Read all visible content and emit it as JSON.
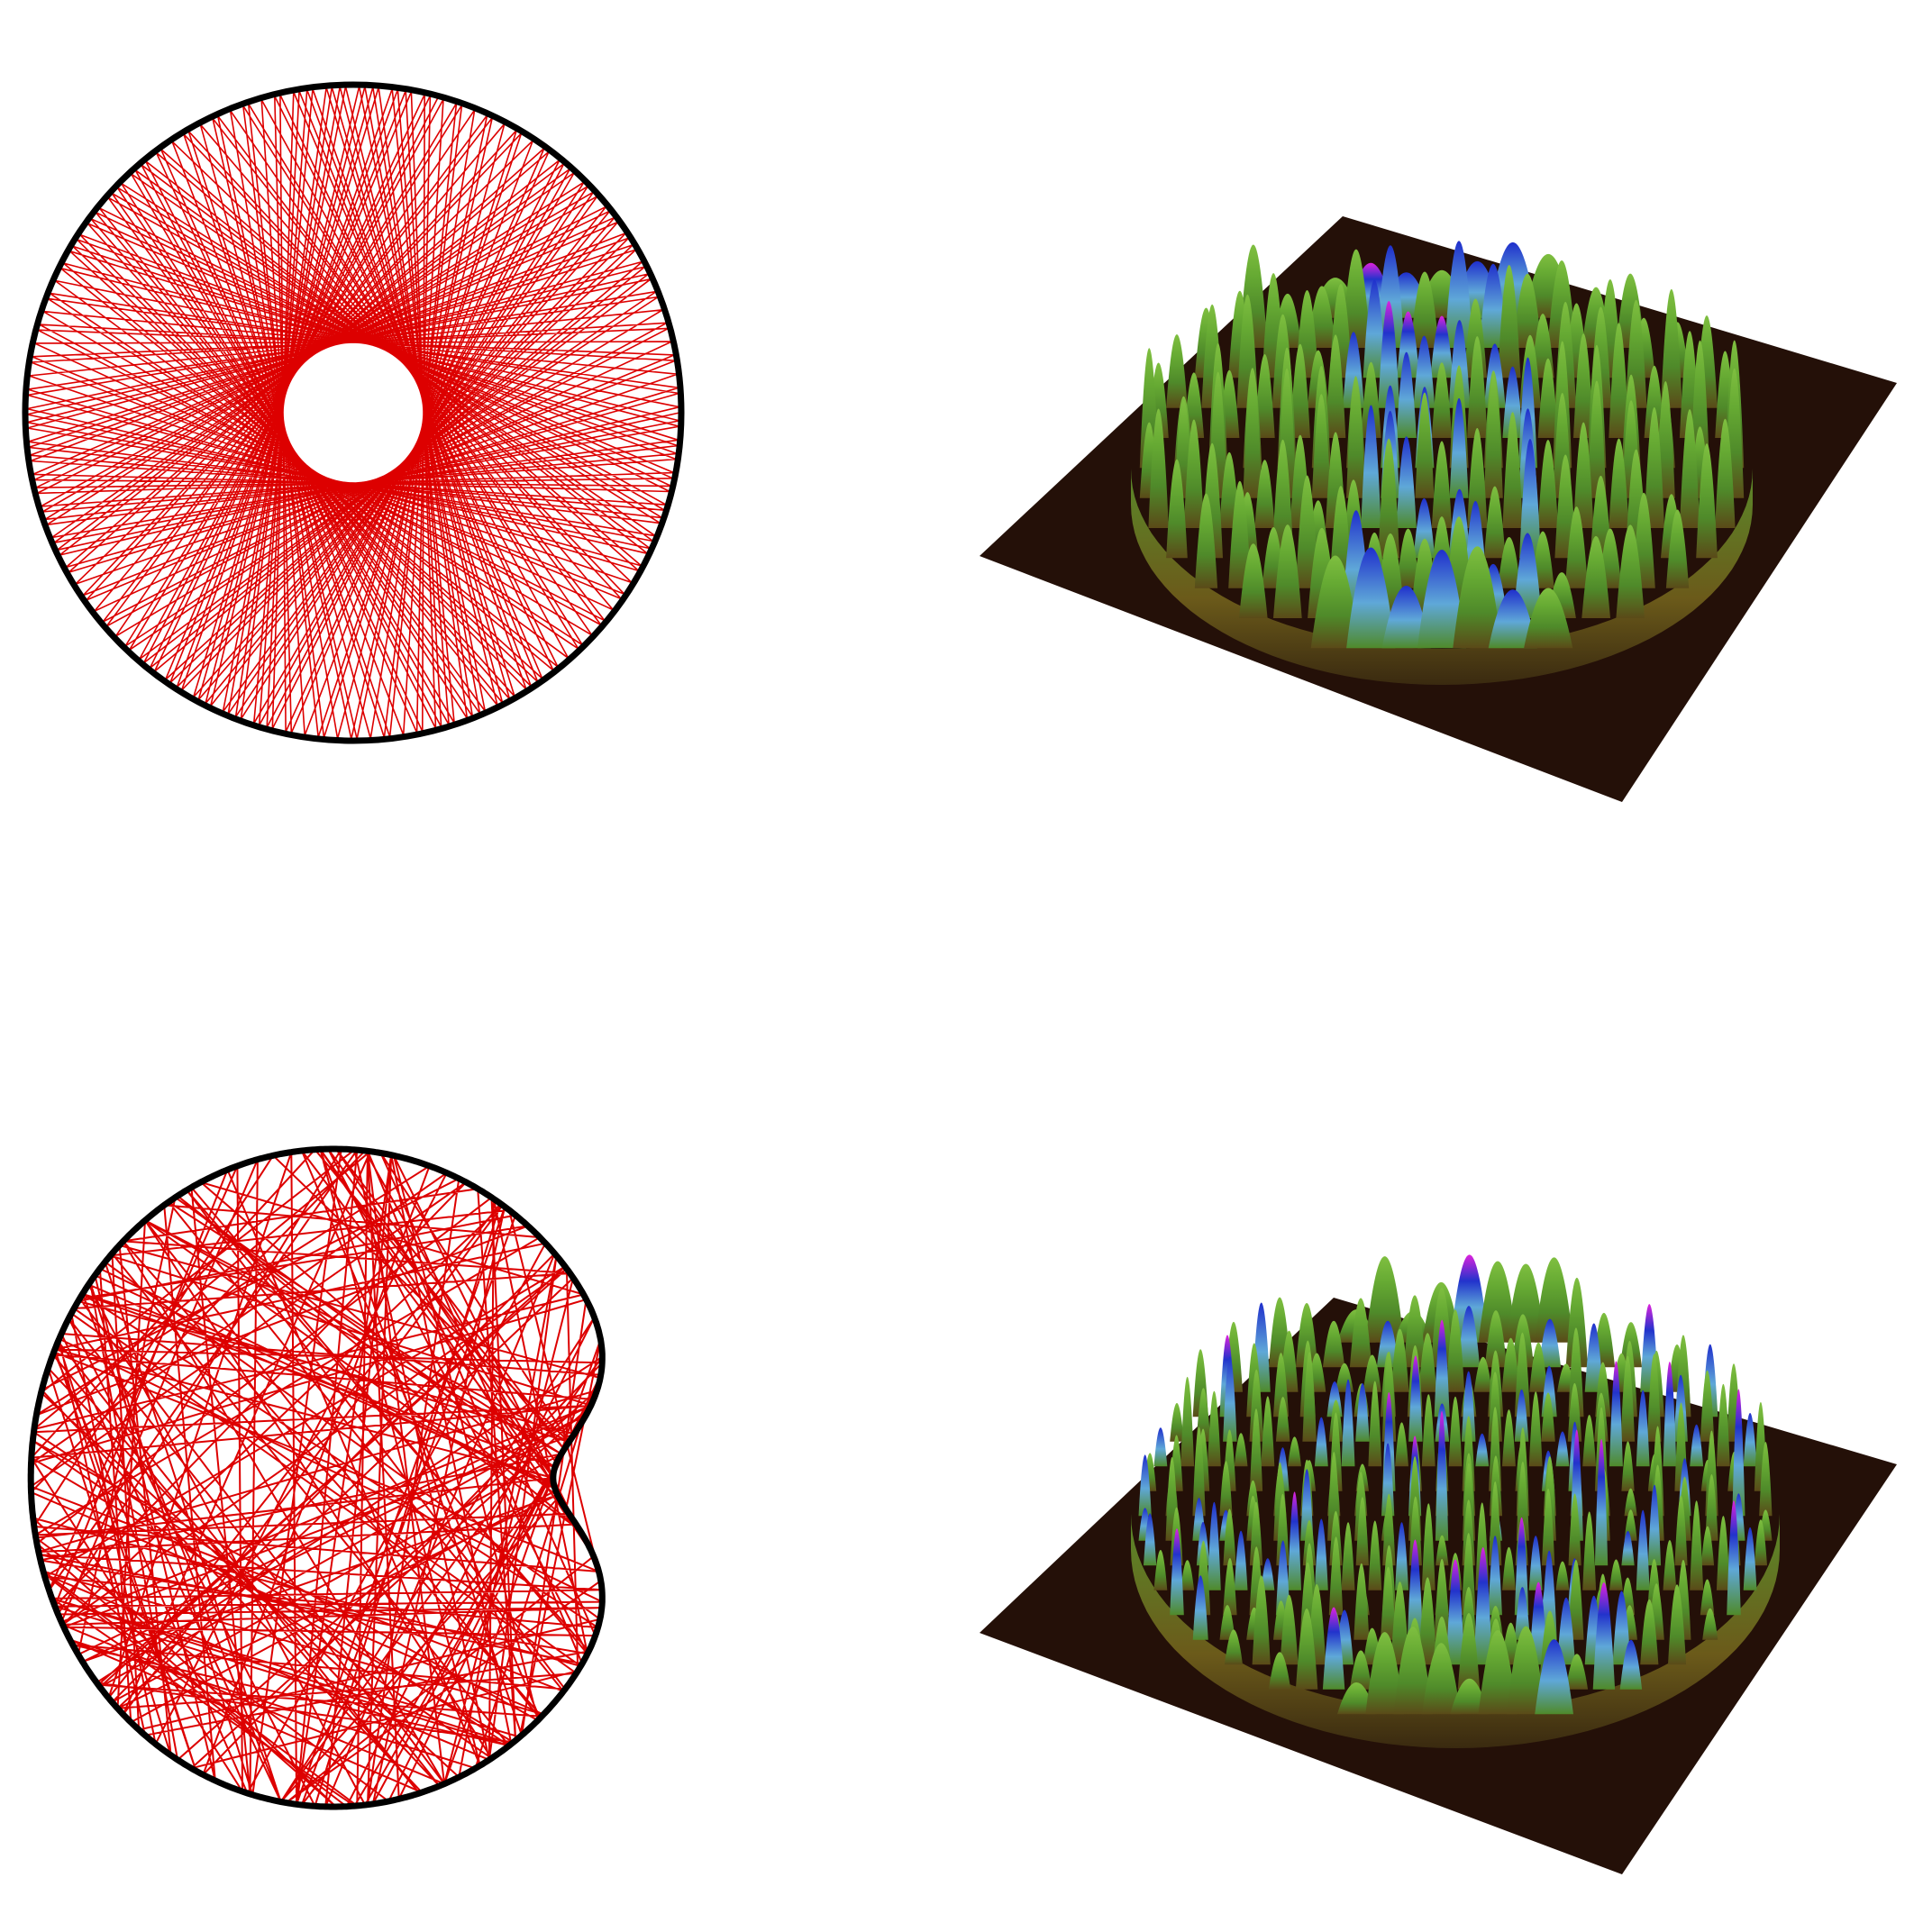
{
  "panels": [
    {
      "id": "circular-billiard-orbit",
      "boundary": "circle",
      "trajectory": "regular"
    },
    {
      "id": "circular-billiard-eigenstate",
      "surface": "3d-density"
    },
    {
      "id": "cardioid-billiard-orbit",
      "boundary": "cardioid",
      "trajectory": "chaotic"
    },
    {
      "id": "cardioid-billiard-eigenstate",
      "surface": "3d-density"
    }
  ],
  "colors": {
    "trajectory": "#dd0000",
    "boundary": "#000000",
    "base_plane": "#241008",
    "surface_low": "#6b5a1a",
    "surface_mid": "#4f8a2a",
    "surface_high": "#5fa8d8",
    "surface_peak_blue": "#2233cc",
    "surface_peak_magenta": "#cc22cc"
  }
}
